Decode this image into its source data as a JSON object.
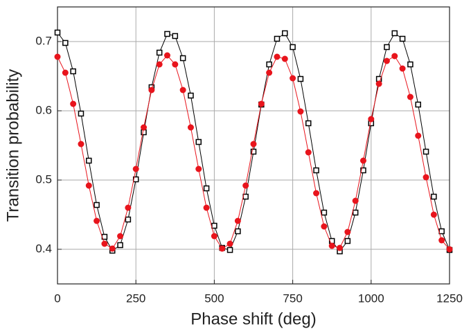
{
  "chart_data": {
    "type": "scatter",
    "x_label": "Phase shift (deg)",
    "y_label": "Transition probability",
    "x": [
      0,
      25,
      50,
      75,
      100,
      125,
      150,
      175,
      200,
      225,
      250,
      275,
      300,
      325,
      350,
      375,
      400,
      425,
      450,
      475,
      500,
      525,
      550,
      575,
      600,
      625,
      650,
      675,
      700,
      725,
      750,
      775,
      800,
      825,
      850,
      875,
      900,
      925,
      950,
      975,
      1000,
      1025,
      1050,
      1075,
      1100,
      1125,
      1150,
      1175,
      1200,
      1225,
      1250
    ],
    "series": [
      {
        "color": "#000000",
        "marker": "square",
        "values": [
          0.713,
          0.698,
          0.657,
          0.596,
          0.528,
          0.464,
          0.418,
          0.398,
          0.406,
          0.443,
          0.501,
          0.569,
          0.634,
          0.684,
          0.711,
          0.708,
          0.676,
          0.622,
          0.555,
          0.488,
          0.434,
          0.402,
          0.399,
          0.426,
          0.476,
          0.541,
          0.609,
          0.667,
          0.704,
          0.712,
          0.692,
          0.646,
          0.582,
          0.514,
          0.453,
          0.412,
          0.397,
          0.412,
          0.453,
          0.514,
          0.582,
          0.646,
          0.692,
          0.712,
          0.704,
          0.667,
          0.609,
          0.541,
          0.476,
          0.426,
          0.399
        ]
      },
      {
        "color": "#e8141c",
        "marker": "circle",
        "values": [
          0.678,
          0.655,
          0.61,
          0.552,
          0.492,
          0.441,
          0.408,
          0.401,
          0.419,
          0.46,
          0.516,
          0.576,
          0.63,
          0.667,
          0.68,
          0.667,
          0.63,
          0.576,
          0.516,
          0.46,
          0.419,
          0.401,
          0.408,
          0.441,
          0.492,
          0.552,
          0.61,
          0.655,
          0.678,
          0.675,
          0.647,
          0.599,
          0.54,
          0.481,
          0.433,
          0.405,
          0.402,
          0.425,
          0.47,
          0.528,
          0.588,
          0.639,
          0.672,
          0.679,
          0.661,
          0.62,
          0.564,
          0.504,
          0.45,
          0.413,
          0.4
        ]
      }
    ],
    "xlim": [
      0,
      1250
    ],
    "ylim": [
      0.35,
      0.75
    ],
    "xticks": [
      0,
      250,
      500,
      750,
      1000,
      1250
    ],
    "yticks": [
      0.4,
      0.5,
      0.6,
      0.7
    ],
    "grid": true
  }
}
